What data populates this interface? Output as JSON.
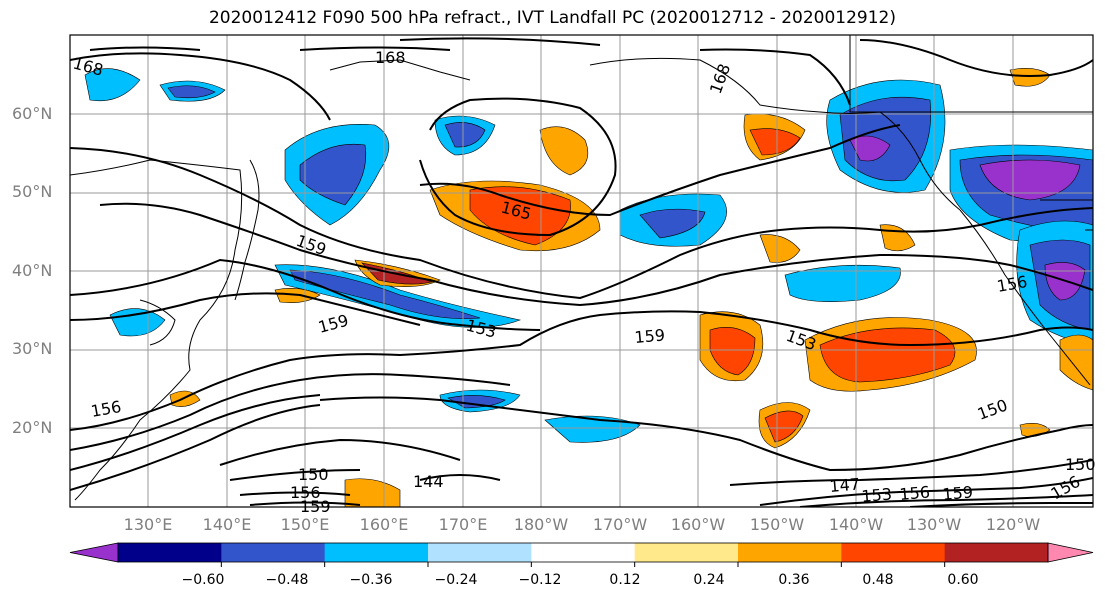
{
  "title": "2020012412 F090 500 hPa refract., IVT Landfall PC (2020012712 - 2020012912)",
  "latitude_labels": [
    "60°N",
    "50°N",
    "40°N",
    "30°N",
    "20°N"
  ],
  "longitude_labels": [
    "130°E",
    "140°E",
    "150°E",
    "160°E",
    "170°E",
    "180°W",
    "170°W",
    "160°W",
    "150°W",
    "140°W",
    "130°W",
    "120°W"
  ],
  "contour_labels": [
    "168",
    "168",
    "168",
    "165",
    "159",
    "159",
    "153",
    "159",
    "153",
    "156",
    "150",
    "156",
    "144",
    "150",
    "156",
    "159",
    "147",
    "153",
    "156",
    "159",
    "156",
    "150"
  ],
  "colorbar": {
    "ticks": [
      "−0.60",
      "−0.48",
      "−0.36",
      "−0.24",
      "−0.12",
      "0.12",
      "0.24",
      "0.36",
      "0.48",
      "0.60"
    ],
    "colors": [
      "#9932cc",
      "#00008b",
      "#3355cc",
      "#00bfff",
      "#b0e2ff",
      "#ffffff",
      "#ffe98a",
      "#ffa500",
      "#ff4500",
      "#b22222",
      "#ff88b0"
    ]
  }
}
